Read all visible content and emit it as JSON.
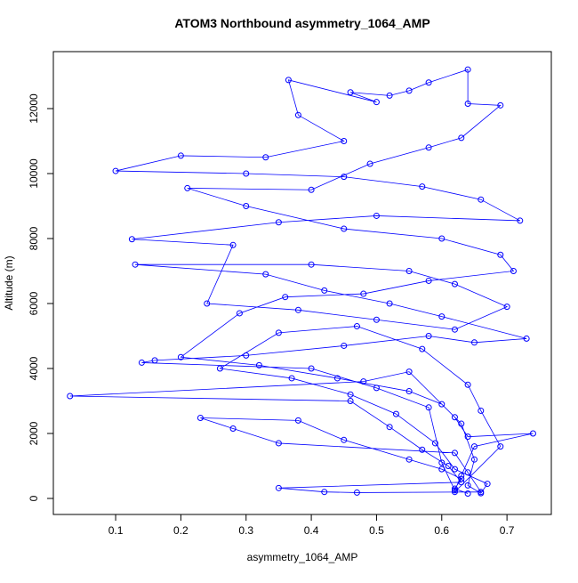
{
  "chart_data": {
    "type": "scatter",
    "connect": true,
    "title": "ATOM3 Northbound asymmetry_1064_AMP",
    "x_label": "asymmetry_1064_AMP",
    "y_label": "Altitude (m)",
    "color": "#0000ff",
    "xlim": [
      0.0045,
      0.768
    ],
    "ylim": [
      -493,
      13753
    ],
    "xticks": [
      0.1,
      0.2,
      0.3,
      0.4,
      0.5,
      0.6,
      0.7
    ],
    "yticks": [
      0,
      2000,
      4000,
      6000,
      8000,
      10000,
      12000
    ],
    "x": [
      0.64,
      0.62,
      0.63,
      0.6,
      0.55,
      0.45,
      0.38,
      0.23,
      0.28,
      0.35,
      0.62,
      0.64,
      0.66,
      0.47,
      0.42,
      0.35,
      0.63,
      0.61,
      0.57,
      0.52,
      0.46,
      0.03,
      0.48,
      0.55,
      0.62,
      0.64,
      0.74,
      0.65,
      0.63,
      0.62,
      0.6,
      0.58,
      0.5,
      0.4,
      0.14,
      0.16,
      0.3,
      0.45,
      0.58,
      0.65,
      0.73,
      0.6,
      0.52,
      0.42,
      0.33,
      0.13,
      0.4,
      0.55,
      0.62,
      0.7,
      0.62,
      0.5,
      0.38,
      0.24,
      0.28,
      0.125,
      0.35,
      0.5,
      0.72,
      0.66,
      0.57,
      0.45,
      0.3,
      0.1,
      0.2,
      0.33,
      0.45,
      0.38,
      0.365,
      0.5,
      0.46,
      0.52,
      0.55,
      0.58,
      0.64,
      0.64,
      0.69,
      0.63,
      0.58,
      0.49,
      0.4,
      0.21,
      0.3,
      0.45,
      0.6,
      0.69,
      0.71,
      0.58,
      0.48,
      0.36,
      0.29,
      0.2,
      0.32,
      0.44,
      0.55,
      0.6,
      0.63,
      0.65,
      0.64,
      0.66,
      0.67,
      0.62,
      0.59,
      0.53,
      0.46,
      0.37,
      0.26,
      0.35,
      0.47,
      0.57,
      0.64,
      0.66,
      0.69,
      0.62
    ],
    "values": [
      150,
      300,
      600,
      900,
      1200,
      1800,
      2400,
      2480,
      2150,
      1700,
      1400,
      800,
      200,
      180,
      200,
      320,
      500,
      1000,
      1500,
      2200,
      3000,
      3150,
      3600,
      3900,
      2500,
      1900,
      2000,
      1600,
      700,
      250,
      1100,
      2800,
      3400,
      4000,
      4180,
      4250,
      4400,
      4700,
      5000,
      4800,
      4920,
      5600,
      6000,
      6400,
      6900,
      7200,
      7200,
      7000,
      6600,
      5900,
      5200,
      5500,
      5800,
      6000,
      7800,
      7980,
      8500,
      8700,
      8550,
      9200,
      9600,
      9900,
      10000,
      10080,
      10550,
      10500,
      11000,
      11800,
      12880,
      12200,
      12500,
      12400,
      12550,
      12800,
      13200,
      12150,
      12100,
      11100,
      10800,
      10300,
      9500,
      9550,
      9000,
      8300,
      8000,
      7500,
      7000,
      6700,
      6300,
      6200,
      5700,
      4350,
      4100,
      3700,
      3300,
      2900,
      2300,
      1200,
      400,
      160,
      450,
      900,
      1700,
      2600,
      3200,
      3700,
      4000,
      5100,
      5300,
      4600,
      3500,
      2700,
      1600,
      200
    ]
  }
}
